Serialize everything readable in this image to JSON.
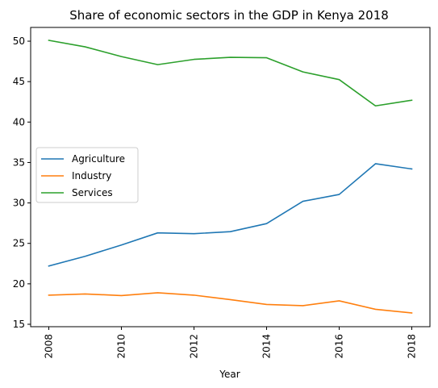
{
  "chart_data": {
    "type": "line",
    "title": "Share of economic sectors in the GDP in Kenya 2018",
    "xlabel": "Year",
    "ylabel": "",
    "x": [
      2008,
      2009,
      2010,
      2011,
      2012,
      2013,
      2014,
      2015,
      2016,
      2017,
      2018
    ],
    "xticks": [
      "2008",
      "2010",
      "2012",
      "2014",
      "2016",
      "2018"
    ],
    "yticks": [
      "15",
      "20",
      "25",
      "30",
      "35",
      "40",
      "45",
      "50"
    ],
    "xlim": [
      2007.5,
      2018.5
    ],
    "ylim": [
      14.7,
      51.7
    ],
    "grid": false,
    "legend_position": "center-left",
    "series": [
      {
        "name": "Agriculture",
        "color": "#1f77b4",
        "values": [
          22.2,
          23.4,
          24.8,
          26.3,
          26.2,
          26.45,
          27.45,
          30.2,
          31.05,
          34.85,
          34.2
        ]
      },
      {
        "name": "Industry",
        "color": "#ff7f0e",
        "values": [
          18.6,
          18.75,
          18.55,
          18.9,
          18.6,
          18.05,
          17.45,
          17.3,
          17.9,
          16.85,
          16.4
        ]
      },
      {
        "name": "Services",
        "color": "#2ca02c",
        "values": [
          50.1,
          49.3,
          48.1,
          47.1,
          47.75,
          48.0,
          47.95,
          46.2,
          45.25,
          42.0,
          42.7
        ]
      }
    ]
  }
}
